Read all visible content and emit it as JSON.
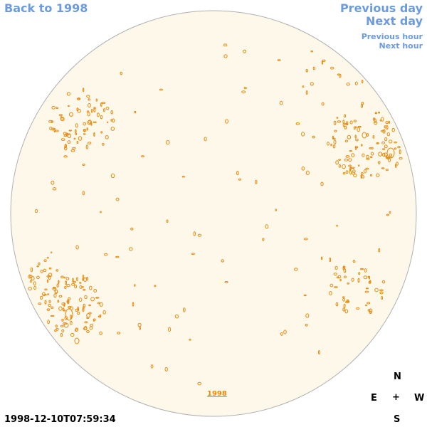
{
  "nav": {
    "back": "Back to 1998",
    "prev_day": "Previous day",
    "next_day": "Next day",
    "prev_hour": "Previous hour",
    "next_hour": "Next hour"
  },
  "year_link": "1998",
  "timestamp": "1998-12-10T07:59:34",
  "compass": {
    "north": "N",
    "east": "E",
    "center": "+",
    "west": "W",
    "south": "S"
  },
  "colors": {
    "disk_fill": "#fdf8ea",
    "disk_stroke": "#b0b0b0",
    "contour": "#e88a0c",
    "link": "#6c9be0"
  }
}
